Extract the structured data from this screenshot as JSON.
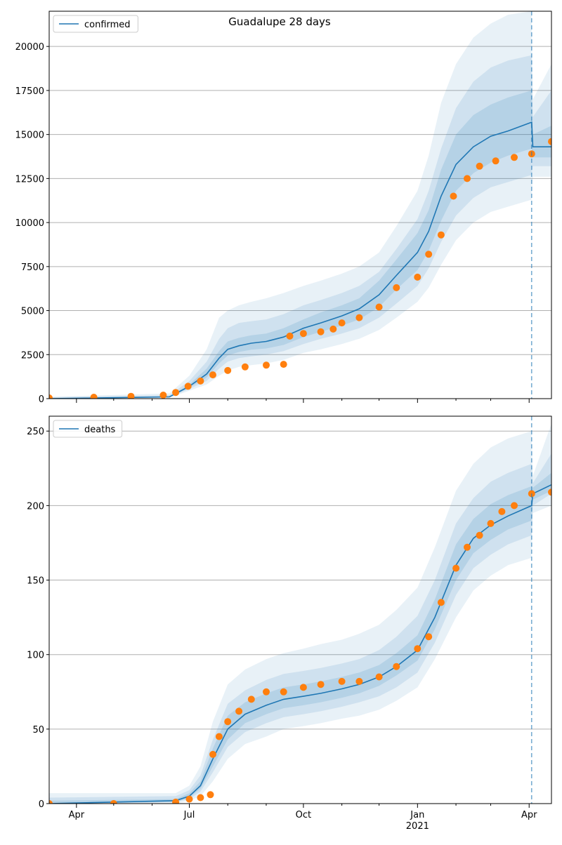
{
  "figure": {
    "title": "Guadalupe 28 days"
  },
  "colors": {
    "model_line": "#1f77b4",
    "band": "#1f77b4",
    "observed": "#ff7f0e",
    "grid": "#b0b0b0",
    "forecast_marker": "#1f77b4"
  },
  "x_axis": {
    "start_date": "2020-03-10",
    "end_date": "2021-04-19",
    "major_ticks": [
      {
        "date": "2020-04-01",
        "label": "Apr",
        "sublabel": ""
      },
      {
        "date": "2020-07-01",
        "label": "Jul",
        "sublabel": ""
      },
      {
        "date": "2020-10-01",
        "label": "Oct",
        "sublabel": ""
      },
      {
        "date": "2021-01-01",
        "label": "Jan",
        "sublabel": "2021"
      },
      {
        "date": "2021-04-01",
        "label": "Apr",
        "sublabel": ""
      }
    ],
    "minor_ticks": [
      "2020-05-01",
      "2020-06-01",
      "2020-08-01",
      "2020-09-01",
      "2020-11-01",
      "2020-12-01",
      "2021-02-01",
      "2021-03-01"
    ],
    "forecast_start": "2021-04-03"
  },
  "chart_data": [
    {
      "type": "line",
      "name": "confirmed",
      "legend": "confirmed",
      "legend_position": "upper-left",
      "grid": "y",
      "ylim": [
        0,
        22000
      ],
      "yticks": [
        0,
        2500,
        5000,
        7500,
        10000,
        12500,
        15000,
        17500,
        20000
      ],
      "model": {
        "x": [
          "2020-03-10",
          "2020-06-15",
          "2020-07-01",
          "2020-07-15",
          "2020-07-25",
          "2020-08-01",
          "2020-08-10",
          "2020-08-20",
          "2020-09-01",
          "2020-09-15",
          "2020-10-01",
          "2020-10-15",
          "2020-11-01",
          "2020-11-15",
          "2020-12-01",
          "2020-12-15",
          "2021-01-01",
          "2021-01-10",
          "2021-01-20",
          "2021-02-01",
          "2021-02-15",
          "2021-03-01",
          "2021-03-15",
          "2021-04-03",
          "2021-04-04",
          "2021-04-19"
        ],
        "y": [
          0,
          100,
          700,
          1400,
          2300,
          2800,
          3000,
          3150,
          3250,
          3500,
          4000,
          4300,
          4700,
          5100,
          5900,
          7000,
          8300,
          9500,
          11500,
          13300,
          14300,
          14900,
          15200,
          15700,
          14300,
          14300
        ],
        "bands": [
          {
            "level": "outer",
            "lower": [
              0,
              60,
              450,
              800,
              1300,
              1600,
              1800,
              1900,
              2000,
              2200,
              2600,
              2800,
              3100,
              3400,
              3900,
              4600,
              5500,
              6300,
              7600,
              9000,
              10000,
              10600,
              10900,
              11300,
              12600,
              12600
            ],
            "upper": [
              100,
              300,
              1300,
              2800,
              4600,
              5000,
              5300,
              5500,
              5700,
              6000,
              6400,
              6700,
              7100,
              7500,
              8300,
              9800,
              11800,
              13800,
              16800,
              19000,
              20500,
              21300,
              21800,
              22000,
              17000,
              19000
            ]
          },
          {
            "level": "middle",
            "lower": [
              0,
              70,
              550,
              1000,
              1700,
              2100,
              2300,
              2400,
              2500,
              2700,
              3100,
              3400,
              3700,
              4000,
              4600,
              5400,
              6400,
              7400,
              8900,
              10400,
              11400,
              12000,
              12300,
              12700,
              13200,
              13200
            ],
            "upper": [
              80,
              200,
              1000,
              2100,
              3400,
              4000,
              4300,
              4400,
              4500,
              4800,
              5300,
              5600,
              6000,
              6400,
              7200,
              8500,
              10200,
              11800,
              14200,
              16500,
              18000,
              18800,
              19200,
              19500,
              16000,
              17500
            ]
          },
          {
            "level": "inner",
            "lower": [
              0,
              80,
              620,
              1200,
              2000,
              2450,
              2650,
              2780,
              2850,
              3050,
              3500,
              3800,
              4150,
              4500,
              5200,
              6200,
              7300,
              8400,
              10100,
              11800,
              12800,
              13400,
              13800,
              14200,
              13700,
              13700
            ],
            "upper": [
              40,
              140,
              800,
              1700,
              2700,
              3250,
              3450,
              3600,
              3700,
              4000,
              4500,
              4900,
              5300,
              5700,
              6700,
              7900,
              9400,
              10700,
              13000,
              15000,
              16100,
              16700,
              17100,
              17500,
              15000,
              15500
            ]
          }
        ]
      },
      "observed": {
        "name": "observed",
        "x": [
          "2020-03-10",
          "2020-04-15",
          "2020-05-15",
          "2020-06-10",
          "2020-06-20",
          "2020-06-30",
          "2020-07-10",
          "2020-07-20",
          "2020-08-01",
          "2020-08-15",
          "2020-09-01",
          "2020-09-15",
          "2020-09-20",
          "2020-10-01",
          "2020-10-15",
          "2020-10-25",
          "2020-11-01",
          "2020-11-15",
          "2020-12-01",
          "2020-12-15",
          "2021-01-01",
          "2021-01-10",
          "2021-01-20",
          "2021-01-30",
          "2021-02-10",
          "2021-02-20",
          "2021-03-05",
          "2021-03-20",
          "2021-04-03",
          "2021-04-19"
        ],
        "y": [
          40,
          80,
          130,
          200,
          350,
          700,
          1000,
          1350,
          1600,
          1800,
          1900,
          1950,
          3550,
          3700,
          3800,
          3950,
          4300,
          4600,
          5200,
          6300,
          6900,
          8200,
          9300,
          11500,
          12500,
          13200,
          13500,
          13700,
          13900,
          14600
        ]
      }
    },
    {
      "type": "line",
      "name": "deaths",
      "legend": "deaths",
      "legend_position": "upper-left",
      "grid": "y",
      "ylim": [
        0,
        260
      ],
      "yticks": [
        0,
        50,
        100,
        150,
        200,
        250
      ],
      "model": {
        "x": [
          "2020-03-10",
          "2020-06-20",
          "2020-07-01",
          "2020-07-10",
          "2020-07-20",
          "2020-08-01",
          "2020-08-15",
          "2020-09-01",
          "2020-09-15",
          "2020-10-01",
          "2020-10-15",
          "2020-11-01",
          "2020-11-15",
          "2020-12-01",
          "2020-12-15",
          "2021-01-01",
          "2021-01-15",
          "2021-02-01",
          "2021-02-15",
          "2021-03-01",
          "2021-03-15",
          "2021-04-03",
          "2021-04-04",
          "2021-04-19"
        ],
        "y": [
          0,
          2,
          5,
          12,
          30,
          50,
          60,
          66,
          70,
          72,
          74,
          77,
          80,
          85,
          92,
          103,
          125,
          160,
          178,
          187,
          193,
          200,
          208,
          214
        ],
        "bands": [
          {
            "level": "outer",
            "lower": [
              0,
              0,
              2,
              5,
              15,
              30,
              40,
              45,
              50,
              52,
              54,
              57,
              59,
              63,
              69,
              78,
              97,
              125,
              143,
              153,
              160,
              165,
              195,
              200
            ],
            "upper": [
              7,
              7,
              12,
              25,
              55,
              80,
              90,
              97,
              101,
              104,
              107,
              110,
              114,
              120,
              130,
              145,
              172,
              210,
              228,
              239,
              245,
              250,
              220,
              255
            ]
          },
          {
            "level": "middle",
            "lower": [
              0,
              1,
              3,
              8,
              21,
              38,
              48,
              54,
              58,
              60,
              62,
              65,
              68,
              72,
              78,
              88,
              108,
              140,
              158,
              167,
              174,
              180,
              200,
              208
            ],
            "upper": [
              4,
              5,
              9,
              19,
              43,
              67,
              76,
              83,
              87,
              89,
              91,
              94,
              97,
              103,
              112,
              126,
              150,
              188,
              205,
              216,
              222,
              228,
              215,
              235
            ]
          },
          {
            "level": "inner",
            "lower": [
              0,
              1,
              4,
              10,
              25,
              43,
              54,
              60,
              64,
              66,
              68,
              71,
              74,
              79,
              86,
              96,
              117,
              150,
              168,
              177,
              184,
              190,
              204,
              210
            ],
            "upper": [
              2,
              3,
              7,
              15,
              37,
              59,
              68,
              74,
              78,
              80,
              82,
              85,
              88,
              93,
              101,
              113,
              137,
              174,
              191,
              201,
              207,
              213,
              212,
              222
            ]
          }
        ]
      },
      "observed": {
        "name": "observed",
        "x": [
          "2020-03-10",
          "2020-05-01",
          "2020-06-20",
          "2020-07-01",
          "2020-07-10",
          "2020-07-18",
          "2020-07-20",
          "2020-07-25",
          "2020-08-01",
          "2020-08-10",
          "2020-08-20",
          "2020-09-01",
          "2020-09-15",
          "2020-10-01",
          "2020-10-15",
          "2020-11-01",
          "2020-11-15",
          "2020-12-01",
          "2020-12-15",
          "2021-01-01",
          "2021-01-10",
          "2021-01-20",
          "2021-02-01",
          "2021-02-10",
          "2021-02-20",
          "2021-03-01",
          "2021-03-10",
          "2021-03-20",
          "2021-04-03",
          "2021-04-19"
        ],
        "y": [
          0,
          0,
          1,
          3,
          4,
          6,
          33,
          45,
          55,
          62,
          70,
          75,
          75,
          78,
          80,
          82,
          82,
          85,
          92,
          104,
          112,
          135,
          158,
          172,
          180,
          188,
          196,
          200,
          208,
          209
        ]
      }
    }
  ]
}
